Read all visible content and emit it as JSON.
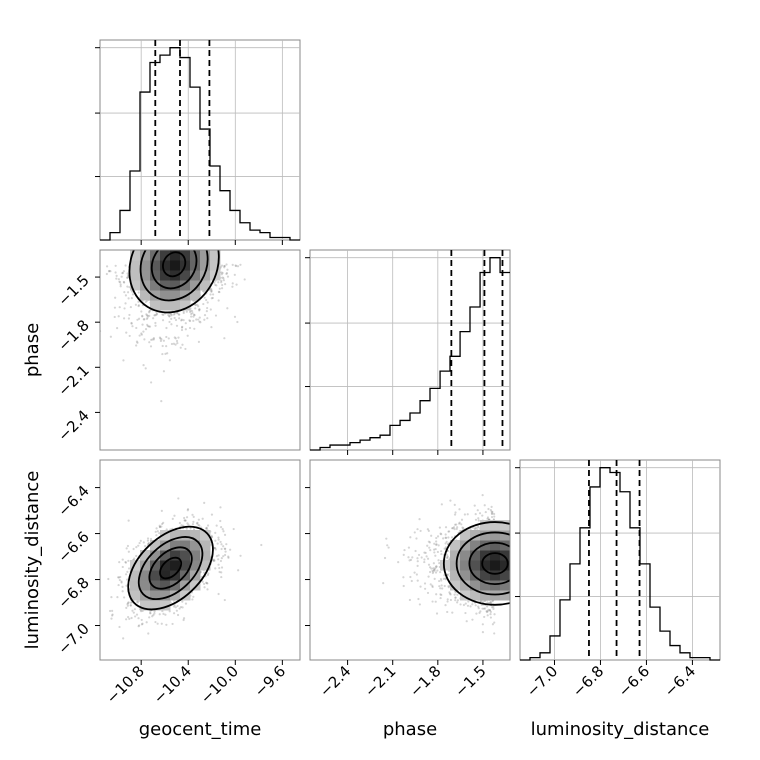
{
  "chart_data": {
    "type": "corner",
    "parameters": [
      "geocent_time",
      "phase",
      "luminosity_distance"
    ],
    "axes": {
      "geocent_time": {
        "range": [
          -11.15,
          -9.45
        ],
        "ticks": [
          -10.8,
          -10.4,
          -10.0,
          -9.6
        ],
        "tick_labels": [
          "−10.8",
          "−10.4",
          "−10.0",
          "−9.6"
        ]
      },
      "phase": {
        "range": [
          -2.65,
          -1.32
        ],
        "ticks": [
          -2.4,
          -2.1,
          -1.8,
          -1.5
        ],
        "tick_labels": [
          "−2.4",
          "−2.1",
          "−1.8",
          "−1.5"
        ]
      },
      "luminosity_distance": {
        "range": [
          -7.15,
          -6.28
        ],
        "ticks": [
          -7.0,
          -6.8,
          -6.6,
          -6.4
        ],
        "tick_labels": [
          "−7.0",
          "−6.8",
          "−6.6",
          "−6.4"
        ]
      }
    },
    "histograms": {
      "geocent_time": {
        "bin_edges": [
          -11.15,
          -11.065,
          -10.98,
          -10.895,
          -10.81,
          -10.725,
          -10.64,
          -10.555,
          -10.47,
          -10.385,
          -10.3,
          -10.215,
          -10.13,
          -10.045,
          -9.96,
          -9.875,
          -9.79,
          -9.705,
          -9.62,
          -9.535,
          -9.45
        ],
        "counts": [
          0,
          3,
          12,
          28,
          60,
          72,
          75,
          78,
          74,
          62,
          45,
          30,
          20,
          12,
          7,
          4,
          3,
          1,
          1,
          0
        ],
        "quantiles": [
          -10.68,
          -10.47,
          -10.22
        ]
      },
      "phase": {
        "bin_edges": [
          -2.65,
          -2.583,
          -2.517,
          -2.45,
          -2.384,
          -2.317,
          -2.251,
          -2.184,
          -2.118,
          -2.051,
          -1.985,
          -1.918,
          -1.852,
          -1.785,
          -1.719,
          -1.652,
          -1.586,
          -1.519,
          -1.453,
          -1.386,
          -1.32
        ],
        "counts": [
          0,
          1,
          2,
          2,
          3,
          4,
          5,
          6,
          10,
          12,
          15,
          20,
          25,
          32,
          38,
          48,
          58,
          72,
          78,
          72
        ],
        "quantiles": [
          -1.71,
          -1.49,
          -1.37
        ]
      },
      "luminosity_distance": {
        "bin_edges": [
          -7.15,
          -7.1065,
          -7.063,
          -7.0195,
          -6.976,
          -6.9325,
          -6.889,
          -6.8455,
          -6.802,
          -6.7585,
          -6.715,
          -6.6715,
          -6.628,
          -6.5845,
          -6.541,
          -6.4975,
          -6.454,
          -6.4105,
          -6.367,
          -6.3235,
          -6.28
        ],
        "counts": [
          0,
          1,
          3,
          10,
          25,
          40,
          55,
          72,
          80,
          78,
          70,
          55,
          40,
          22,
          12,
          6,
          3,
          1,
          1,
          0
        ],
        "quantiles": [
          -6.85,
          -6.73,
          -6.63
        ]
      }
    },
    "joint_distributions": [
      {
        "x": "geocent_time",
        "y": "phase",
        "center": [
          -10.52,
          -1.415
        ],
        "sigma": [
          0.19,
          0.16
        ],
        "correlation": 0.15
      },
      {
        "x": "geocent_time",
        "y": "luminosity_distance",
        "center": [
          -10.55,
          -6.75
        ],
        "sigma": [
          0.18,
          0.09
        ],
        "correlation": 0.45
      },
      {
        "x": "phase",
        "y": "luminosity_distance",
        "center": [
          -1.42,
          -6.73
        ],
        "sigma": [
          0.17,
          0.09
        ],
        "correlation": 0.0
      }
    ],
    "contour_levels_sigma": [
      0.5,
      1.0,
      1.5,
      2.0
    ],
    "grid": true
  }
}
